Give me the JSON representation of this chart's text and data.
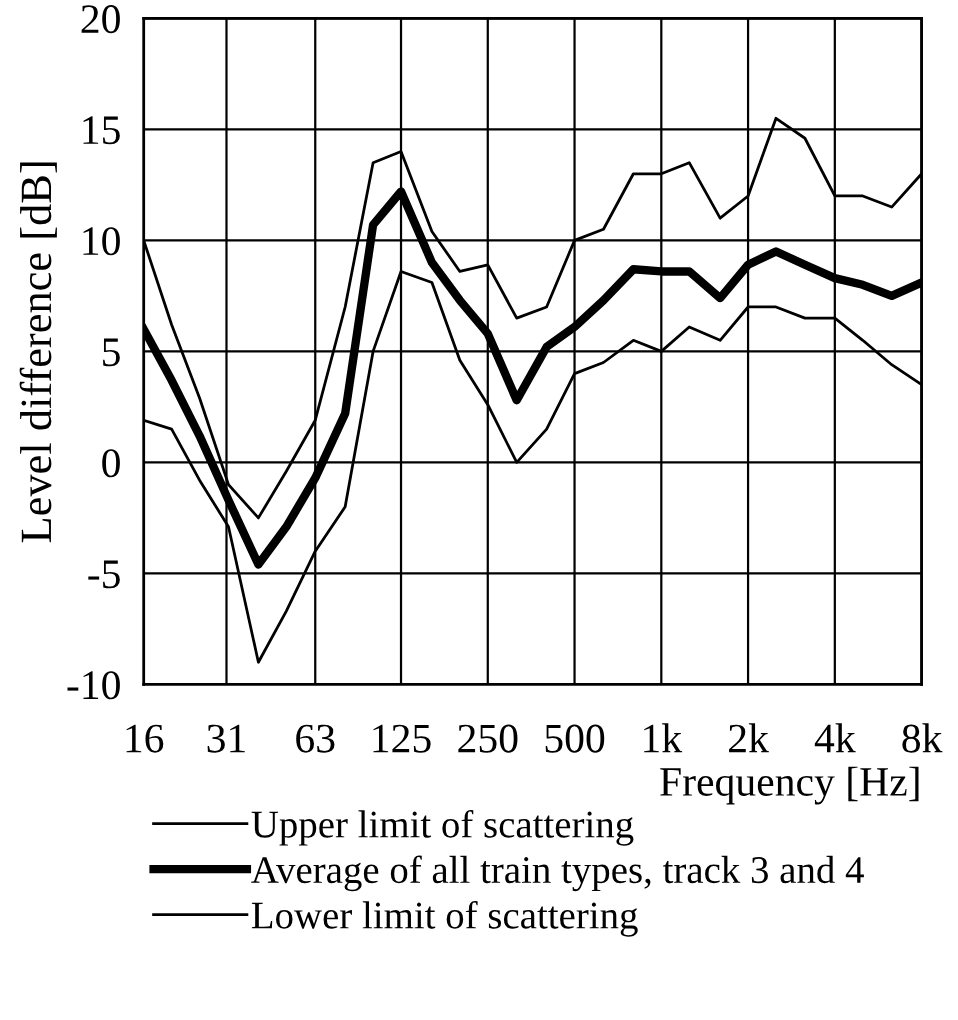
{
  "chart_data": {
    "type": "line",
    "xlabel": "Frequency [Hz]",
    "ylabel": "Level difference [dB]",
    "x": [
      16,
      20,
      25,
      31.5,
      40,
      50,
      63,
      80,
      100,
      125,
      160,
      200,
      250,
      315,
      400,
      500,
      630,
      800,
      1000,
      1250,
      1600,
      2000,
      2500,
      3150,
      4000,
      5000,
      6300,
      8000
    ],
    "xlim": [
      16,
      8000
    ],
    "log": "x",
    "xticks": [
      16,
      31,
      63,
      125,
      250,
      500,
      {
        "value": 1000,
        "label": "1k"
      },
      {
        "value": 2000,
        "label": "2k"
      },
      {
        "value": 4000,
        "label": "4k"
      },
      {
        "value": 8000,
        "label": "8k"
      }
    ],
    "ylim": [
      -10,
      20
    ],
    "yticks": [
      -10,
      -5,
      0,
      5,
      10,
      15,
      20
    ],
    "grid": true,
    "legend": "bottom",
    "marker": "none",
    "series": [
      {
        "name": "Upper limit of scattering",
        "color": "#000000",
        "values": [
          10,
          6.2,
          2.9,
          -1.0,
          -2.5,
          -0.4,
          1.9,
          7.0,
          13.5,
          14.0,
          10.4,
          8.6,
          8.9,
          6.5,
          7.0,
          10.0,
          10.5,
          13.0,
          13.0,
          13.5,
          11.0,
          12.0,
          15.5,
          14.6,
          12.0,
          12.0,
          11.5,
          13.0
        ]
      },
      {
        "name": "Average of all train types, track 3 and 4",
        "color": "#000000",
        "values": [
          6.0,
          3.7,
          1.2,
          -1.7,
          -4.6,
          -2.9,
          -0.7,
          2.2,
          10.7,
          12.2,
          9.0,
          7.3,
          5.8,
          2.8,
          5.2,
          6.1,
          7.3,
          8.7,
          8.6,
          8.6,
          7.4,
          8.9,
          9.5,
          8.9,
          8.3,
          8.0,
          7.5,
          8.1
        ]
      },
      {
        "name": "Lower limit of scattering",
        "color": "#000000",
        "values": [
          1.9,
          1.5,
          -0.8,
          -2.9,
          -9.0,
          -6.7,
          -4.0,
          -2.0,
          5.0,
          8.6,
          8.1,
          4.6,
          2.6,
          0.0,
          1.5,
          4.0,
          4.5,
          5.5,
          5.0,
          6.1,
          5.5,
          7.0,
          7.0,
          6.5,
          6.5,
          5.5,
          4.4,
          3.5
        ]
      }
    ]
  }
}
